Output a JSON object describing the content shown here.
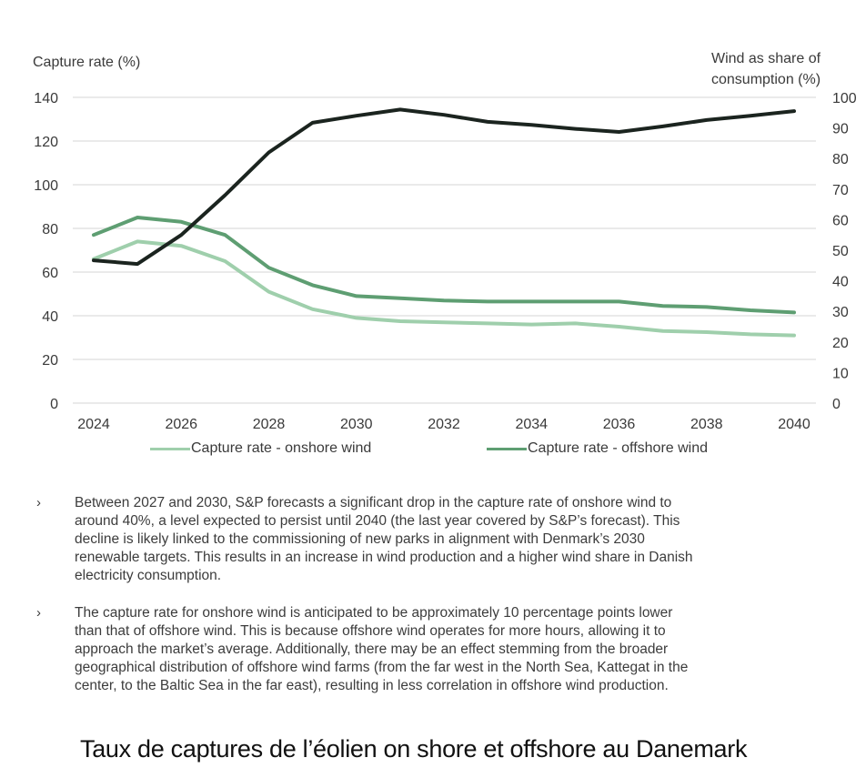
{
  "chart_data": {
    "type": "line",
    "title": "",
    "x": [
      2024,
      2025,
      2026,
      2027,
      2028,
      2029,
      2030,
      2031,
      2032,
      2033,
      2034,
      2035,
      2036,
      2037,
      2038,
      2039,
      2040
    ],
    "x_ticks": [
      "2024",
      "2026",
      "2028",
      "2030",
      "2032",
      "2034",
      "2036",
      "2038",
      "2040"
    ],
    "ylabel_left": "Capture rate (%)",
    "ylabel_right": [
      "Wind as share of",
      "consumption (%)"
    ],
    "ylim_left": [
      0,
      140
    ],
    "yticks_left": [
      "0",
      "20",
      "40",
      "60",
      "80",
      "100",
      "120",
      "140"
    ],
    "ylim_right": [
      0,
      100
    ],
    "yticks_right": [
      "0",
      "10",
      "20",
      "30",
      "40",
      "50",
      "60",
      "70",
      "80",
      "90",
      "100"
    ],
    "grid": true,
    "legend_position": "bottom",
    "series": [
      {
        "name": "Capture rate - onshore wind",
        "axis": "left",
        "color": "#9fcfac",
        "in_legend": true,
        "values": [
          66,
          74,
          72,
          65,
          51,
          43,
          39,
          37.5,
          37,
          36.5,
          36,
          36.5,
          35,
          33,
          32.5,
          31.5,
          31
        ]
      },
      {
        "name": "Capture rate - offshore wind",
        "axis": "left",
        "color": "#5e9e72",
        "in_legend": true,
        "values": [
          77,
          85,
          83,
          77,
          62,
          54,
          49,
          48,
          47,
          46.5,
          46.5,
          46.5,
          46.5,
          44.5,
          44,
          42.5,
          41.5
        ]
      },
      {
        "name": "Wind as share of consumption",
        "axis": "right",
        "color": "#1b241f",
        "in_legend": false,
        "values": [
          46.7,
          45.5,
          55,
          68,
          82,
          91.7,
          94,
          96,
          94.3,
          92,
          91,
          89.7,
          88.7,
          90.5,
          92.6,
          94,
          95.5
        ]
      }
    ]
  },
  "bullets": [
    {
      "marker": "›",
      "lines": [
        "Between 2027 and 2030, S&P forecasts a significant drop in the capture rate of onshore wind to",
        "around 40%, a level expected to persist until 2040 (the last year covered by S&P’s forecast). This",
        "decline is likely linked to the commissioning of new parks in alignment with Denmark’s 2030",
        "renewable targets. This results in an increase in wind production and a higher wind share in Danish",
        "electricity consumption."
      ]
    },
    {
      "marker": "›",
      "lines": [
        "The capture rate for onshore wind is anticipated to be approximately 10 percentage points lower",
        "than that of offshore wind. This is because offshore wind operates for more hours, allowing it to",
        "approach the market’s average. Additionally, there may be an effect stemming from the broader",
        "geographical distribution of offshore wind farms (from the far west in the North Sea, Kattegat in the",
        "center, to the Baltic Sea in the far east), resulting in less correlation in offshore wind production."
      ]
    }
  ],
  "caption": "Taux de captures de l’éolien on shore et offshore au Danemark"
}
